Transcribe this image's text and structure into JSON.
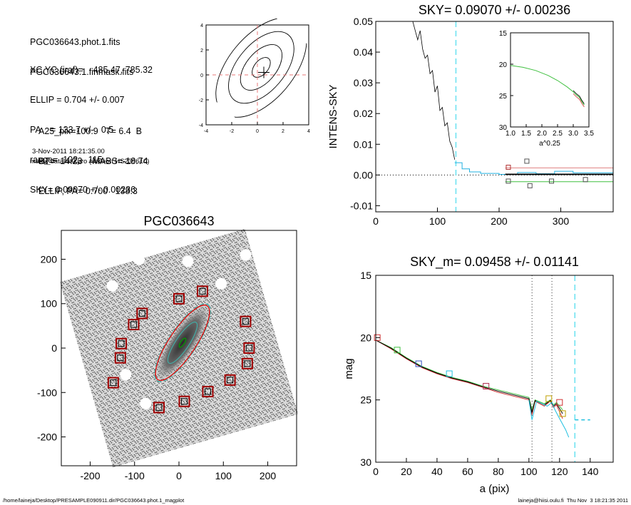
{
  "info": {
    "lines1": [
      "PGC036643.phot.1.fits",
      "PGC036643.1.finmask.fits"
    ],
    "lines2": [
      "XC,YC (iraf)=    485.47, 785.32",
      "ELLIP = 0.704 +/- 0.007",
      "PA    = 133.7 +/-   0.5",
      "range=  102.-  115.",
      "SKY= 0.09070 +/- 0.00236"
    ],
    "lines3": [
      "A25_pix=100.9   T= 6.4  B",
      "BT=  14.23    MABS=-18.74",
      "ELLIP, PA= 0.700   138.3"
    ],
    "date": "3-Nov-2011 18:21:35.00",
    "program": "make_datalist0.pro (version HS230610)"
  },
  "footer": {
    "left": "/home/laineja/Desktop/PRESAMPLE090911.dir/PGC036643.phot.1_magplot",
    "right": "laineja@hiisi.oulu.fi  Thu Nov  3 18:21:35 2011"
  },
  "chart_data": [
    {
      "id": "center",
      "type": "line",
      "title": "",
      "xlim": [
        -4,
        4
      ],
      "ylim": [
        -4,
        4
      ],
      "xticks": [
        -4,
        -2,
        0,
        2,
        4
      ],
      "yticks": [
        -4,
        -2,
        0,
        2,
        4
      ],
      "marker": {
        "x": 0.5,
        "y": 0.2
      },
      "colors": {
        "cross": "#e87a7a",
        "contour": "#000000"
      }
    },
    {
      "id": "sky",
      "type": "line",
      "title": "SKY= 0.09070 +/- 0.00236",
      "xlabel": "",
      "ylabel": "INTENS-SKY",
      "xlim": [
        0,
        385
      ],
      "ylim": [
        -0.012,
        0.05
      ],
      "xticks": [
        0,
        100,
        200,
        300
      ],
      "yticks": [
        "0.05",
        "0.04",
        "0.03",
        "0.02",
        "0.01",
        "0.00",
        "-0.01"
      ],
      "sky_line_x": 130,
      "profile": [
        [
          60,
          0.05
        ],
        [
          68,
          0.044
        ],
        [
          72,
          0.047
        ],
        [
          76,
          0.041
        ],
        [
          80,
          0.038
        ],
        [
          84,
          0.039
        ],
        [
          88,
          0.033
        ],
        [
          92,
          0.034
        ],
        [
          96,
          0.027
        ],
        [
          100,
          0.029
        ],
        [
          104,
          0.021
        ],
        [
          108,
          0.022
        ],
        [
          112,
          0.016
        ],
        [
          116,
          0.017
        ],
        [
          120,
          0.011
        ],
        [
          124,
          0.009
        ],
        [
          128,
          0.005
        ]
      ],
      "cyan_steps": [
        [
          128,
          0.004
        ],
        [
          140,
          0.004
        ],
        [
          140,
          0.002
        ],
        [
          152,
          0.002
        ],
        [
          152,
          0.001
        ],
        [
          170,
          0.001
        ],
        [
          170,
          0.0005
        ],
        [
          200,
          0.0005
        ],
        [
          200,
          0.0002
        ],
        [
          230,
          0.0002
        ],
        [
          230,
          0.0008
        ],
        [
          260,
          0.0008
        ],
        [
          260,
          0.0004
        ],
        [
          290,
          0.0004
        ],
        [
          290,
          0.0012
        ],
        [
          320,
          0.0012
        ],
        [
          320,
          0.0007
        ],
        [
          385,
          0.0007
        ]
      ],
      "squares": [
        {
          "x": 215,
          "y": 0.0025,
          "color": "#b03030"
        },
        {
          "x": 245,
          "y": 0.0045,
          "color": "#555555"
        },
        {
          "x": 215,
          "y": -0.002,
          "color": "#555555"
        },
        {
          "x": 250,
          "y": -0.0035,
          "color": "#555555"
        },
        {
          "x": 285,
          "y": -0.002,
          "color": "#555555"
        },
        {
          "x": 340,
          "y": -0.0015,
          "color": "#555555"
        }
      ],
      "levels": [
        {
          "y": 0.0023,
          "color": "#e08080"
        },
        {
          "y": 0.0002,
          "color": "#000000"
        },
        {
          "y": -0.0022,
          "color": "#40c040"
        }
      ],
      "inset": {
        "xlabel": "a^0.25",
        "xlim": [
          1.0,
          3.5
        ],
        "ylim": [
          15,
          30
        ],
        "xticks": [
          "1.0",
          "1.5",
          "2.0",
          "2.5",
          "3.0",
          "3.5"
        ],
        "yticks": [
          "15",
          "20",
          "25",
          "30"
        ],
        "curve": [
          [
            1.0,
            20.2
          ],
          [
            1.4,
            20.5
          ],
          [
            1.8,
            21.0
          ],
          [
            2.2,
            21.8
          ],
          [
            2.5,
            22.6
          ],
          [
            2.8,
            23.6
          ],
          [
            3.0,
            24.4
          ],
          [
            3.1,
            24.9
          ],
          [
            3.2,
            25.3
          ],
          [
            3.28,
            26.0
          ],
          [
            3.35,
            26.5
          ]
        ]
      }
    },
    {
      "id": "image",
      "type": "scatter",
      "title": "PGC036643",
      "xlim": [
        -265,
        265
      ],
      "ylim": [
        -265,
        265
      ],
      "xticks": [
        -200,
        -100,
        0,
        100,
        200
      ],
      "yticks": [
        200,
        100,
        0,
        -100,
        -200
      ],
      "ellipse": {
        "x": 8,
        "y": 12,
        "a": 100,
        "ellipticity": 0.7,
        "pa_deg": 138.3
      },
      "mask_boxes": [
        [
          0,
          111
        ],
        [
          53,
          128
        ],
        [
          -83,
          78
        ],
        [
          -102,
          53
        ],
        [
          -130,
          10
        ],
        [
          -132,
          -22
        ],
        [
          -148,
          -78
        ],
        [
          150,
          60
        ],
        [
          158,
          0
        ],
        [
          154,
          -35
        ],
        [
          115,
          -72
        ],
        [
          65,
          -98
        ],
        [
          12,
          -120
        ],
        [
          -45,
          -134
        ]
      ],
      "colors": {
        "box": "#a00000",
        "ellipse": "#e01010",
        "outer": "#3cb8b0",
        "core": "#00a000"
      }
    },
    {
      "id": "mag",
      "type": "line",
      "title": "SKY_m=  0.09458 +/- 0.01141",
      "xlabel": "a (pix)",
      "ylabel": "mag",
      "xlim": [
        0,
        155
      ],
      "ylim": [
        15,
        30
      ],
      "xticks": [
        0,
        20,
        40,
        60,
        80,
        100,
        120,
        140
      ],
      "yticks": [
        15,
        20,
        25,
        30
      ],
      "vlines": [
        102,
        115,
        130
      ],
      "series": [
        {
          "color": "#40c040",
          "values": [
            [
              0,
              20.2
            ],
            [
              10,
              20.8
            ],
            [
              20,
              21.6
            ],
            [
              30,
              22.3
            ],
            [
              40,
              22.8
            ],
            [
              50,
              23.2
            ],
            [
              60,
              23.5
            ],
            [
              70,
              23.9
            ],
            [
              80,
              24.2
            ],
            [
              90,
              24.5
            ],
            [
              100,
              24.8
            ],
            [
              102,
              25.8
            ],
            [
              104,
              25.0
            ],
            [
              110,
              25.3
            ],
            [
              114,
              25.0
            ],
            [
              116,
              25.4
            ],
            [
              118,
              25.2
            ],
            [
              122,
              25.8
            ]
          ]
        },
        {
          "color": "#d03030",
          "values": [
            [
              0,
              20.2
            ],
            [
              10,
              20.9
            ],
            [
              20,
              21.7
            ],
            [
              30,
              22.4
            ],
            [
              40,
              22.9
            ],
            [
              50,
              23.3
            ],
            [
              60,
              23.6
            ],
            [
              70,
              24.0
            ],
            [
              80,
              24.4
            ],
            [
              90,
              24.7
            ],
            [
              100,
              25.0
            ],
            [
              102,
              26.2
            ],
            [
              104,
              25.1
            ],
            [
              110,
              25.5
            ],
            [
              114,
              25.1
            ],
            [
              116,
              25.6
            ],
            [
              118,
              25.4
            ],
            [
              122,
              26.5
            ]
          ]
        },
        {
          "color": "#000000",
          "values": [
            [
              0,
              20.2
            ],
            [
              10,
              20.85
            ],
            [
              20,
              21.65
            ],
            [
              30,
              22.35
            ],
            [
              40,
              22.85
            ],
            [
              50,
              23.25
            ],
            [
              60,
              23.55
            ],
            [
              70,
              23.95
            ],
            [
              80,
              24.3
            ],
            [
              90,
              24.6
            ],
            [
              100,
              24.9
            ],
            [
              102,
              26.0
            ],
            [
              104,
              25.05
            ],
            [
              110,
              25.4
            ],
            [
              114,
              25.05
            ],
            [
              116,
              25.5
            ],
            [
              118,
              25.3
            ],
            [
              122,
              26.1
            ]
          ]
        },
        {
          "color": "#20c0e0",
          "values": [
            [
              100,
              25.0
            ],
            [
              102,
              26.6
            ],
            [
              105,
              25.1
            ],
            [
              112,
              25.5
            ],
            [
              115,
              25.2
            ],
            [
              117,
              25.8
            ],
            [
              120,
              26.5
            ],
            [
              124,
              27.4
            ],
            [
              126,
              28.0
            ]
          ]
        }
      ],
      "squares": [
        {
          "x": 1,
          "y": 20.0,
          "color": "#d03030"
        },
        {
          "x": 14,
          "y": 21.0,
          "color": "#40c040"
        },
        {
          "x": 28,
          "y": 22.1,
          "color": "#3050c0"
        },
        {
          "x": 48,
          "y": 22.9,
          "color": "#20c0e0"
        },
        {
          "x": 72,
          "y": 23.9,
          "color": "#b03050"
        },
        {
          "x": 113,
          "y": 24.9,
          "color": "#c0a000"
        },
        {
          "x": 120,
          "y": 25.2,
          "color": "#d03030"
        },
        {
          "x": 122,
          "y": 26.1,
          "color": "#c0a000"
        }
      ],
      "sky_level": {
        "x0": 130,
        "x1": 140,
        "y": 26.6,
        "color": "#20c0e0"
      }
    }
  ]
}
